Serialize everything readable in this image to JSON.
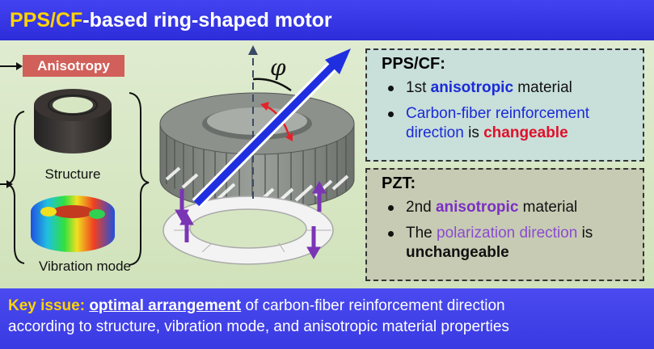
{
  "title": {
    "highlight": "PPS/CF",
    "rest": "-based ring-shaped motor"
  },
  "left": {
    "badge": "Anisotropy",
    "structure_label": "Structure",
    "vibration_label": "Vibration mode"
  },
  "diagram": {
    "angle_symbol": "φ"
  },
  "panel1": {
    "heading": "PPS/CF:",
    "item1": {
      "pre": "1st ",
      "em": "anisotropic",
      "post": " material"
    },
    "item2": {
      "line1": "Carbon-fiber reinforcement",
      "line2_pre": "direction",
      "line2_mid": " is ",
      "line2_em": "changeable"
    }
  },
  "panel2": {
    "heading": "PZT:",
    "item1": {
      "pre": "2nd ",
      "em": "anisotropic",
      "post": " material"
    },
    "item2": {
      "pre": "The ",
      "em": "polarization direction",
      "post": " is",
      "line2": "unchangeable"
    }
  },
  "bottom": {
    "key": "Key issue:",
    "space": " ",
    "hl": "optimal arrangement",
    "rest1": " of carbon-fiber reinforcement direction",
    "line2": "according to structure, vibration mode, and anisotropic material properties"
  },
  "colors": {
    "title_bg": "#3535e6",
    "title_highlight": "#ffd400",
    "badge_bg": "#d1605a",
    "panel1_bg": "#c8dfda",
    "panel2_bg": "#c7cbb3",
    "fiber_arrow": "#1f2fe0",
    "polarization_arrow": "#7a35b5",
    "rotation_arrow": "#e4222a"
  }
}
